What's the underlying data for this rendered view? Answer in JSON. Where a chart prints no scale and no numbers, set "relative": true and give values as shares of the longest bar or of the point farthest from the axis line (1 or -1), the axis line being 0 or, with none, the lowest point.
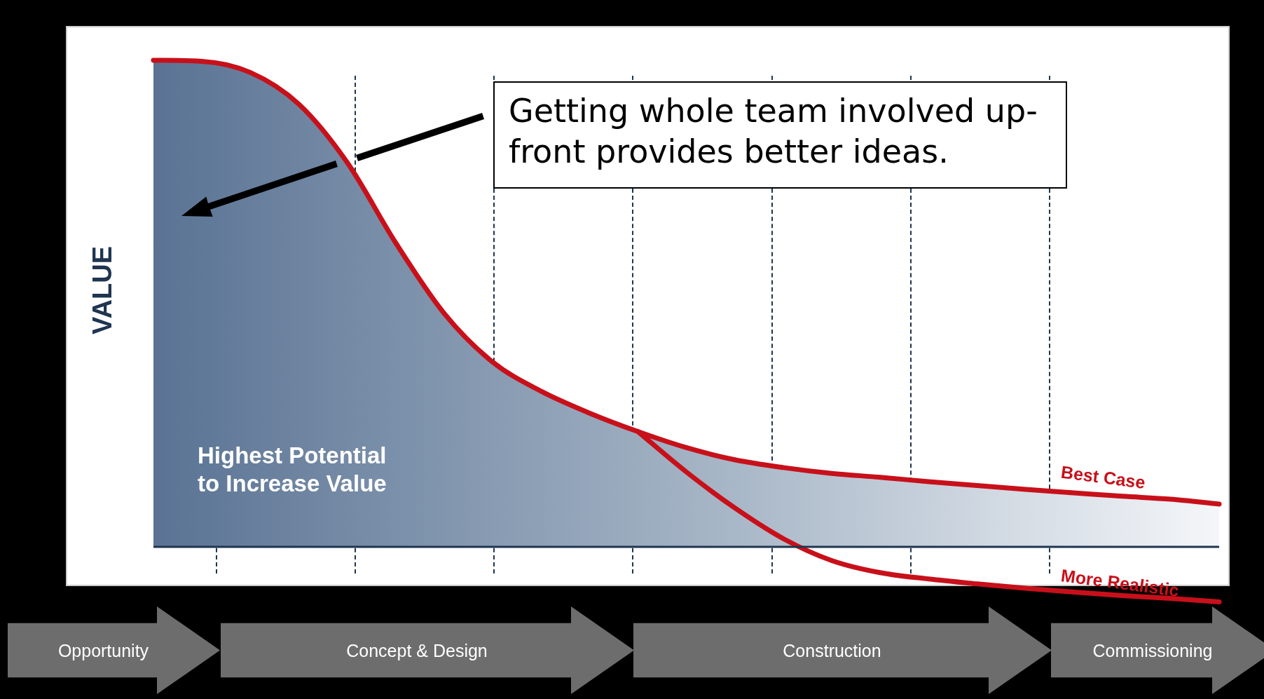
{
  "chart_data": {
    "type": "line",
    "relative": true,
    "ylabel": "VALUE",
    "categories": [
      null,
      null,
      null,
      null,
      null,
      null,
      null,
      null,
      null,
      null,
      null,
      null,
      null,
      null,
      null,
      null,
      null,
      null,
      null,
      null,
      null,
      null,
      null
    ],
    "series": [
      {
        "name": "Best Case",
        "type": "area",
        "color": "#c8101a",
        "values": [
          1.0,
          0.998,
          0.975,
          0.91,
          0.79,
          0.625,
          0.48,
          0.38,
          0.32,
          0.275,
          0.237,
          0.204,
          0.179,
          0.163,
          0.151,
          0.143,
          0.134,
          0.126,
          0.118,
          0.111,
          0.104,
          0.098,
          0.088
        ]
      },
      {
        "name": "More Realistic",
        "type": "line",
        "color": "#c8101a",
        "values": [
          null,
          null,
          null,
          null,
          null,
          null,
          null,
          null,
          null,
          null,
          0.237,
          0.154,
          0.08,
          0.017,
          -0.028,
          -0.053,
          -0.066,
          -0.076,
          -0.085,
          -0.093,
          -0.1,
          -0.106,
          -0.113
        ]
      }
    ],
    "annotations": [
      "Getting whole team involved up-front provides better ideas.",
      "Highest Potential to Increase Value",
      "Opportunity",
      "Concept & Design",
      "Construction",
      "Commissioning"
    ],
    "legend": false,
    "marker": "none",
    "line_style": "solid"
  }
}
